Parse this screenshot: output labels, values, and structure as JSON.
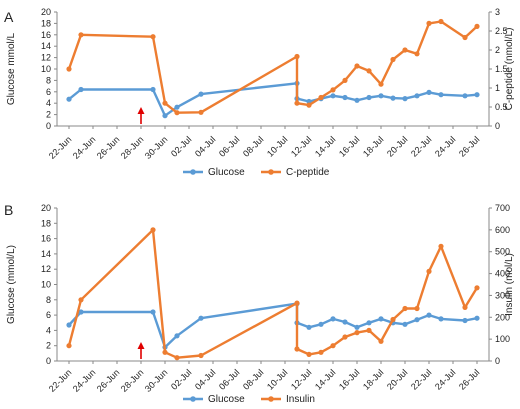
{
  "colors": {
    "glucose": "#5b9bd5",
    "secondary": "#ed7d31",
    "arrow": "#e00000",
    "axis": "#888888",
    "grid": "#bfbfbf"
  },
  "chart_data": [
    {
      "type": "line",
      "panel_label": "A",
      "x_tick_labels": [
        "22-Jun",
        "24-Jun",
        "26-Jun",
        "28-Jun",
        "30-Jun",
        "02-Jul",
        "04-Jul",
        "06-Jul",
        "08-Jul",
        "10-Jul",
        "12-Jul",
        "14-Jul",
        "16-Jul",
        "18-Jul",
        "20-Jul",
        "22-Jul",
        "24-Jul",
        "26-Jul"
      ],
      "xlim": [
        "2019-06-21",
        "2019-07-27"
      ],
      "ylabel": "Glucose mmol/L",
      "y2label": "C-peptide (nmol/L)",
      "ylim": [
        0,
        20
      ],
      "yticks": [
        0,
        2,
        4,
        6,
        8,
        10,
        12,
        14,
        16,
        18,
        20
      ],
      "y2lim": [
        0,
        3
      ],
      "y2ticks": [
        0,
        0.5,
        1,
        1.5,
        2,
        2.5,
        3
      ],
      "y2_tick_labels": [
        "0",
        "0.5",
        "1",
        "1.5",
        "2",
        "2.5",
        "3"
      ],
      "arrow_date": "2019-06-28",
      "legend_position": "bottom",
      "series": [
        {
          "name": "Glucose",
          "axis": "left",
          "x": [
            "2019-06-22",
            "2019-06-23",
            "2019-06-29",
            "2019-06-30",
            "2019-07-01",
            "2019-07-03",
            "2019-07-11",
            "2019-07-11",
            "2019-07-12",
            "2019-07-13",
            "2019-07-14",
            "2019-07-15",
            "2019-07-16",
            "2019-07-17",
            "2019-07-18",
            "2019-07-19",
            "2019-07-20",
            "2019-07-21",
            "2019-07-22",
            "2019-07-23",
            "2019-07-25",
            "2019-07-26"
          ],
          "y": [
            4.7,
            6.4,
            6.4,
            1.8,
            3.3,
            5.6,
            7.5,
            4.8,
            4.3,
            4.8,
            5.3,
            5.0,
            4.5,
            5.0,
            5.3,
            4.9,
            4.8,
            5.3,
            5.9,
            5.5,
            5.3,
            5.5
          ]
        },
        {
          "name": "C-peptide",
          "axis": "right",
          "x": [
            "2019-06-22",
            "2019-06-23",
            "2019-06-29",
            "2019-06-30",
            "2019-07-01",
            "2019-07-03",
            "2019-07-11",
            "2019-07-11",
            "2019-07-12",
            "2019-07-13",
            "2019-07-14",
            "2019-07-15",
            "2019-07-16",
            "2019-07-17",
            "2019-07-18",
            "2019-07-19",
            "2019-07-20",
            "2019-07-21",
            "2019-07-22",
            "2019-07-23",
            "2019-07-25",
            "2019-07-26"
          ],
          "y": [
            1.5,
            2.4,
            2.35,
            0.6,
            0.35,
            0.36,
            1.83,
            0.6,
            0.55,
            0.75,
            0.95,
            1.2,
            1.58,
            1.45,
            1.1,
            1.75,
            2.0,
            1.9,
            2.7,
            2.75,
            2.33,
            2.62
          ]
        }
      ]
    },
    {
      "type": "line",
      "panel_label": "B",
      "x_tick_labels": [
        "22-Jun",
        "24-Jun",
        "26-Jun",
        "28-Jun",
        "30-Jun",
        "02-Jul",
        "04-Jul",
        "06-Jul",
        "08-Jul",
        "10-Jul",
        "12-Jul",
        "14-Jul",
        "16-Jul",
        "18-Jul",
        "20-Jul",
        "22-Jul",
        "24-Jul",
        "26-Jul"
      ],
      "xlim": [
        "2019-06-21",
        "2019-07-27"
      ],
      "ylabel": "Glucose (mmol/L)",
      "y2label": "Insulin (mol/L)",
      "ylim": [
        0,
        20
      ],
      "yticks": [
        0,
        2,
        4,
        6,
        8,
        10,
        12,
        14,
        16,
        18,
        20
      ],
      "y2lim": [
        0,
        700
      ],
      "y2ticks": [
        0,
        100,
        200,
        300,
        400,
        500,
        600,
        700
      ],
      "y2_tick_labels": [
        "0",
        "100",
        "200",
        "300",
        "400",
        "500",
        "600",
        "700"
      ],
      "arrow_date": "2019-06-28",
      "legend_position": "bottom",
      "series": [
        {
          "name": "Glucose",
          "axis": "left",
          "x": [
            "2019-06-22",
            "2019-06-23",
            "2019-06-29",
            "2019-06-30",
            "2019-07-01",
            "2019-07-03",
            "2019-07-11",
            "2019-07-11",
            "2019-07-12",
            "2019-07-13",
            "2019-07-14",
            "2019-07-15",
            "2019-07-16",
            "2019-07-17",
            "2019-07-18",
            "2019-07-19",
            "2019-07-20",
            "2019-07-21",
            "2019-07-22",
            "2019-07-23",
            "2019-07-25",
            "2019-07-26"
          ],
          "y": [
            4.7,
            6.4,
            6.4,
            1.8,
            3.3,
            5.6,
            7.5,
            5.0,
            4.4,
            4.8,
            5.5,
            5.1,
            4.4,
            5.0,
            5.5,
            5.0,
            4.8,
            5.4,
            6.0,
            5.5,
            5.3,
            5.6
          ]
        },
        {
          "name": "Insulin",
          "axis": "right",
          "x": [
            "2019-06-22",
            "2019-06-23",
            "2019-06-29",
            "2019-06-30",
            "2019-07-01",
            "2019-07-03",
            "2019-07-11",
            "2019-07-11",
            "2019-07-12",
            "2019-07-13",
            "2019-07-14",
            "2019-07-15",
            "2019-07-16",
            "2019-07-17",
            "2019-07-18",
            "2019-07-19",
            "2019-07-20",
            "2019-07-21",
            "2019-07-22",
            "2019-07-23",
            "2019-07-25",
            "2019-07-26"
          ],
          "y": [
            70,
            280,
            600,
            40,
            15,
            25,
            265,
            55,
            30,
            40,
            70,
            110,
            130,
            140,
            90,
            190,
            240,
            240,
            410,
            525,
            245,
            335
          ]
        }
      ]
    }
  ]
}
